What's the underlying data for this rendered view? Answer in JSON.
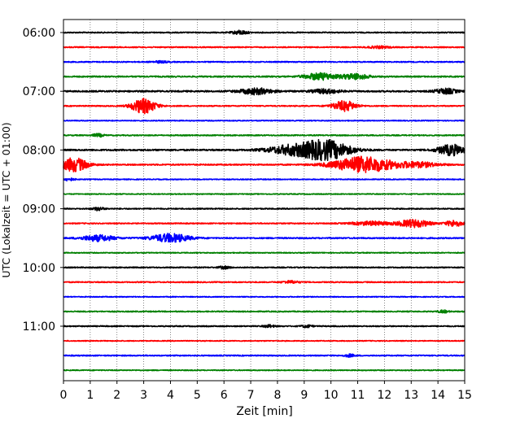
{
  "chart_data": {
    "type": "line",
    "title": "",
    "xlabel": "Zeit  [min]",
    "ylabel": "UTC (Lokalzeit = UTC + 01:00)",
    "xlim": [
      0,
      15
    ],
    "x_ticks": [
      0,
      1,
      2,
      3,
      4,
      5,
      6,
      7,
      8,
      9,
      10,
      11,
      12,
      13,
      14,
      15
    ],
    "x_tick_labels": [
      "0",
      "1",
      "2",
      "3",
      "4",
      "5",
      "6",
      "7",
      "8",
      "9",
      "10",
      "11",
      "12",
      "13",
      "14",
      "15"
    ],
    "y_tick_labels": [
      "06:00",
      "07:00",
      "08:00",
      "09:00",
      "10:00",
      "11:00"
    ],
    "trace_minutes": 15,
    "grid": "vertical dotted",
    "colors": [
      "#000000",
      "#ff0000",
      "#0000ff",
      "#008000"
    ],
    "traces": [
      {
        "start": "06:00",
        "color": "#000000",
        "base": 0.25,
        "events": [
          [
            6.6,
            0.9,
            0.3
          ]
        ]
      },
      {
        "start": "06:15",
        "color": "#ff0000",
        "base": 0.25,
        "events": [
          [
            11.8,
            0.5,
            0.4
          ]
        ]
      },
      {
        "start": "06:30",
        "color": "#0000ff",
        "base": 0.25,
        "events": [
          [
            3.6,
            0.4,
            0.3
          ]
        ]
      },
      {
        "start": "06:45",
        "color": "#008000",
        "base": 0.3,
        "events": [
          [
            9.6,
            1.6,
            0.6
          ],
          [
            10.9,
            1.3,
            0.5
          ]
        ]
      },
      {
        "start": "07:00",
        "color": "#000000",
        "base": 0.35,
        "events": [
          [
            7.2,
            1.4,
            0.6
          ],
          [
            9.8,
            1.0,
            0.5
          ],
          [
            14.3,
            1.2,
            0.4
          ]
        ]
      },
      {
        "start": "07:15",
        "color": "#ff0000",
        "base": 0.25,
        "events": [
          [
            3.0,
            3.5,
            0.45
          ],
          [
            10.5,
            2.4,
            0.45
          ]
        ]
      },
      {
        "start": "07:30",
        "color": "#0000ff",
        "base": 0.2,
        "events": []
      },
      {
        "start": "07:45",
        "color": "#008000",
        "base": 0.25,
        "events": [
          [
            1.3,
            0.7,
            0.2
          ]
        ]
      },
      {
        "start": "08:00",
        "color": "#000000",
        "base": 0.35,
        "events": [
          [
            8.5,
            2.0,
            0.9
          ],
          [
            9.8,
            4.5,
            0.9
          ],
          [
            14.5,
            2.5,
            0.5
          ]
        ]
      },
      {
        "start": "08:15",
        "color": "#ff0000",
        "base": 0.3,
        "events": [
          [
            0.4,
            3.2,
            0.5
          ],
          [
            11.2,
            3.8,
            1.1
          ],
          [
            13.2,
            1.2,
            0.8
          ]
        ]
      },
      {
        "start": "08:30",
        "color": "#0000ff",
        "base": 0.2,
        "events": [
          [
            0.2,
            0.7,
            0.2
          ]
        ]
      },
      {
        "start": "08:45",
        "color": "#008000",
        "base": 0.2,
        "events": []
      },
      {
        "start": "09:00",
        "color": "#000000",
        "base": 0.25,
        "events": [
          [
            1.3,
            0.8,
            0.2
          ]
        ]
      },
      {
        "start": "09:15",
        "color": "#ff0000",
        "base": 0.25,
        "events": [
          [
            11.5,
            0.9,
            0.7
          ],
          [
            13.1,
            1.8,
            0.6
          ],
          [
            14.6,
            1.5,
            0.3
          ]
        ]
      },
      {
        "start": "09:30",
        "color": "#0000ff",
        "base": 0.3,
        "events": [
          [
            1.3,
            1.4,
            0.6
          ],
          [
            4.0,
            2.0,
            0.7
          ]
        ]
      },
      {
        "start": "09:45",
        "color": "#008000",
        "base": 0.2,
        "events": []
      },
      {
        "start": "10:00",
        "color": "#000000",
        "base": 0.25,
        "events": [
          [
            6.0,
            0.6,
            0.2
          ]
        ]
      },
      {
        "start": "10:15",
        "color": "#ff0000",
        "base": 0.25,
        "events": [
          [
            8.5,
            0.6,
            0.3
          ]
        ]
      },
      {
        "start": "10:30",
        "color": "#0000ff",
        "base": 0.2,
        "events": []
      },
      {
        "start": "10:45",
        "color": "#008000",
        "base": 0.25,
        "events": [
          [
            14.2,
            0.6,
            0.2
          ]
        ]
      },
      {
        "start": "11:00",
        "color": "#000000",
        "base": 0.25,
        "events": [
          [
            7.7,
            0.6,
            0.2
          ],
          [
            9.1,
            0.6,
            0.2
          ]
        ]
      },
      {
        "start": "11:15",
        "color": "#ff0000",
        "base": 0.2,
        "events": []
      },
      {
        "start": "11:30",
        "color": "#0000ff",
        "base": 0.25,
        "events": [
          [
            10.7,
            0.6,
            0.2
          ]
        ]
      },
      {
        "start": "11:45",
        "color": "#008000",
        "base": 0.2,
        "events": []
      }
    ]
  }
}
